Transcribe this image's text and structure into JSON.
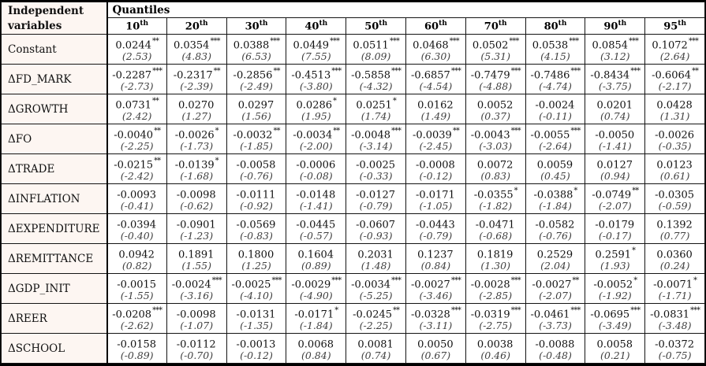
{
  "header": {
    "col1_line1": "Independent",
    "col1_line2": "variables",
    "group": "Quantiles",
    "quantiles": [
      {
        "n": "10",
        "sup": "th"
      },
      {
        "n": "20",
        "sup": "th"
      },
      {
        "n": "30",
        "sup": "th"
      },
      {
        "n": "40",
        "sup": "th"
      },
      {
        "n": "50",
        "sup": "th"
      },
      {
        "n": "60",
        "sup": "th"
      },
      {
        "n": "70",
        "sup": "th"
      },
      {
        "n": "80",
        "sup": "th"
      },
      {
        "n": "90",
        "sup": "th"
      },
      {
        "n": "95",
        "sup": "th"
      }
    ]
  },
  "table": {
    "rows": [
      {
        "label": "Constant",
        "cells": [
          {
            "c": "0.0244",
            "s": "**",
            "t": "(2.53)"
          },
          {
            "c": "0.0354",
            "s": "***",
            "t": "(4.83)"
          },
          {
            "c": "0.0388",
            "s": "***",
            "t": "(6.53)"
          },
          {
            "c": "0.0449",
            "s": "***",
            "t": "(7.55)"
          },
          {
            "c": "0.0511",
            "s": "***",
            "t": "(8.09)"
          },
          {
            "c": "0.0468",
            "s": "***",
            "t": "(6.30)"
          },
          {
            "c": "0.0502",
            "s": "***",
            "t": "(5.31)"
          },
          {
            "c": "0.0538",
            "s": "***",
            "t": "(4.15)"
          },
          {
            "c": "0.0854",
            "s": "***",
            "t": "(3.12)"
          },
          {
            "c": "0.1072",
            "s": "***",
            "t": "(2.64)"
          }
        ]
      },
      {
        "label": "ΔFD_MARK",
        "cells": [
          {
            "c": "-0.2287",
            "s": "***",
            "t": "(-2.73)"
          },
          {
            "c": "-0.2317",
            "s": "**",
            "t": "(-2.39)"
          },
          {
            "c": "-0.2856",
            "s": "**",
            "t": "(-2.49)"
          },
          {
            "c": "-0.4513",
            "s": "***",
            "t": "(-3.80)"
          },
          {
            "c": "-0.5858",
            "s": "***",
            "t": "(-4.32)"
          },
          {
            "c": "-0.6857",
            "s": "***",
            "t": "(-4.54)"
          },
          {
            "c": "-0.7479",
            "s": "***",
            "t": "(-4.88)"
          },
          {
            "c": "-0.7486",
            "s": "***",
            "t": "(-4.74)"
          },
          {
            "c": "-0.8434",
            "s": "***",
            "t": "(-3.75)"
          },
          {
            "c": "-0.6064",
            "s": "**",
            "t": "(-2.17)"
          }
        ]
      },
      {
        "label": "ΔGROWTH",
        "cells": [
          {
            "c": "0.0731",
            "s": "**",
            "t": "(2.42)"
          },
          {
            "c": "0.0270",
            "s": "",
            "t": "(1.27)"
          },
          {
            "c": "0.0297",
            "s": "",
            "t": "(1.56)"
          },
          {
            "c": "0.0286",
            "s": "*",
            "t": "(1.95)"
          },
          {
            "c": "0.0251",
            "s": "*",
            "t": "(1.74)"
          },
          {
            "c": "0.0162",
            "s": "",
            "t": "(1.49)"
          },
          {
            "c": "0.0052",
            "s": "",
            "t": "(0.37)"
          },
          {
            "c": "-0.0024",
            "s": "",
            "t": "(-0.11)"
          },
          {
            "c": "0.0201",
            "s": "",
            "t": "(0.74)"
          },
          {
            "c": "0.0428",
            "s": "",
            "t": "(1.31)"
          }
        ]
      },
      {
        "label": "ΔFO",
        "cells": [
          {
            "c": "-0.0040",
            "s": "**",
            "t": "(-2.25)"
          },
          {
            "c": "-0.0026",
            "s": "*",
            "t": "(-1.73)"
          },
          {
            "c": "-0.0032",
            "s": "**",
            "t": "(-1.85)"
          },
          {
            "c": "-0.0034",
            "s": "**",
            "t": "(-2.00)"
          },
          {
            "c": "-0.0048",
            "s": "***",
            "t": "(-3.14)"
          },
          {
            "c": "-0.0039",
            "s": "**",
            "t": "(-2.45)"
          },
          {
            "c": "-0.0043",
            "s": "***",
            "t": "(-3.03)"
          },
          {
            "c": "-0.0055",
            "s": "***",
            "t": "(-2.64)"
          },
          {
            "c": "-0.0050",
            "s": "",
            "t": "(-1.41)"
          },
          {
            "c": "-0.0026",
            "s": "",
            "t": "(-0.35)"
          }
        ]
      },
      {
        "label": "ΔTRADE",
        "cells": [
          {
            "c": "-0.0215",
            "s": "**",
            "t": "(-2.42)"
          },
          {
            "c": "-0.0139",
            "s": "*",
            "t": "(-1.68)"
          },
          {
            "c": "-0.0058",
            "s": "",
            "t": "(-0.76)"
          },
          {
            "c": "-0.0006",
            "s": "",
            "t": "(-0.08)"
          },
          {
            "c": "-0.0025",
            "s": "",
            "t": "(-0.33)"
          },
          {
            "c": "-0.0008",
            "s": "",
            "t": "(-0.12)"
          },
          {
            "c": "0.0072",
            "s": "",
            "t": "(0.83)"
          },
          {
            "c": "0.0059",
            "s": "",
            "t": "(0.45)"
          },
          {
            "c": "0.0127",
            "s": "",
            "t": "(0.94)"
          },
          {
            "c": "0.0123",
            "s": "",
            "t": "(0.61)"
          }
        ]
      },
      {
        "label": "ΔINFLATION",
        "cells": [
          {
            "c": "-0.0093",
            "s": "",
            "t": "(-0.41)"
          },
          {
            "c": "-0.0098",
            "s": "",
            "t": "(-0.62)"
          },
          {
            "c": "-0.0111",
            "s": "",
            "t": "(-0.92)"
          },
          {
            "c": "-0.0148",
            "s": "",
            "t": "(-1.41)"
          },
          {
            "c": "-0.0127",
            "s": "",
            "t": "(-0.79)"
          },
          {
            "c": "-0.0171",
            "s": "",
            "t": "(-1.05)"
          },
          {
            "c": "-0.0355",
            "s": "*",
            "t": "(-1.82)"
          },
          {
            "c": "-0.0388",
            "s": "*",
            "t": "(-1.84)"
          },
          {
            "c": "-0.0749",
            "s": "**",
            "t": "(-2.07)"
          },
          {
            "c": "-0.0305",
            "s": "",
            "t": "(-0.59)"
          }
        ]
      },
      {
        "label": "ΔEXPENDITURE",
        "cells": [
          {
            "c": "-0.0394",
            "s": "",
            "t": "(-0.40)"
          },
          {
            "c": "-0.0901",
            "s": "",
            "t": "(-1.23)"
          },
          {
            "c": "-0.0569",
            "s": "",
            "t": "(-0.83)"
          },
          {
            "c": "-0.0445",
            "s": "",
            "t": "(-0.57)"
          },
          {
            "c": "-0.0607",
            "s": "",
            "t": "(-0.93)"
          },
          {
            "c": "-0.0443",
            "s": "",
            "t": "(-0.79)"
          },
          {
            "c": "-0.0471",
            "s": "",
            "t": "(-0.68)"
          },
          {
            "c": "-0.0582",
            "s": "",
            "t": "(-0.76)"
          },
          {
            "c": "-0.0179",
            "s": "",
            "t": "(-0.17)"
          },
          {
            "c": "0.1392",
            "s": "",
            "t": "(0.77)"
          }
        ]
      },
      {
        "label": "ΔREMITTANCE",
        "cells": [
          {
            "c": "0.0942",
            "s": "",
            "t": "(0.82)"
          },
          {
            "c": "0.1891",
            "s": "",
            "t": "(1.55)"
          },
          {
            "c": "0.1800",
            "s": "",
            "t": "(1.25)"
          },
          {
            "c": "0.1604",
            "s": "",
            "t": "(0.89)"
          },
          {
            "c": "0.2031",
            "s": "",
            "t": "(1.48)"
          },
          {
            "c": "0.1237",
            "s": "",
            "t": "(0.84)"
          },
          {
            "c": "0.1819",
            "s": "",
            "t": "(1.30)"
          },
          {
            "c": "0.2529",
            "s": "",
            "t": "(2.04)"
          },
          {
            "c": "0.2591",
            "s": "*",
            "t": "(1.93)"
          },
          {
            "c": "0.0360",
            "s": "",
            "t": "(0.24)"
          }
        ]
      },
      {
        "label": "ΔGDP_INIT",
        "cells": [
          {
            "c": "-0.0015",
            "s": "",
            "t": "(-1.55)"
          },
          {
            "c": "-0.0024",
            "s": "***",
            "t": "(-3.16)"
          },
          {
            "c": "-0.0025",
            "s": "***",
            "t": "(-4.10)"
          },
          {
            "c": "-0.0029",
            "s": "***",
            "t": "(-4.90)"
          },
          {
            "c": "-0.0034",
            "s": "***",
            "t": "(-5.25)"
          },
          {
            "c": "-0.0027",
            "s": "***",
            "t": "(-3.46)"
          },
          {
            "c": "-0.0028",
            "s": "***",
            "t": "(-2.85)"
          },
          {
            "c": "-0.0027",
            "s": "**",
            "t": "(-2.07)"
          },
          {
            "c": "-0.0052",
            "s": "*",
            "t": "(-1.92)"
          },
          {
            "c": "-0.0071",
            "s": "*",
            "t": "(-1.71)"
          }
        ]
      },
      {
        "label": "ΔREER",
        "cells": [
          {
            "c": "-0.0208",
            "s": "***",
            "t": "(-2.62)"
          },
          {
            "c": "-0.0098",
            "s": "",
            "t": "(-1.07)"
          },
          {
            "c": "-0.0131",
            "s": "",
            "t": "(-1.35)"
          },
          {
            "c": "-0.0171",
            "s": "*",
            "t": "(-1.84)"
          },
          {
            "c": "-0.0245",
            "s": "**",
            "t": "(-2.25)"
          },
          {
            "c": "-0.0328",
            "s": "***",
            "t": "(-3.11)"
          },
          {
            "c": "-0.0319",
            "s": "***",
            "t": "(-2.75)"
          },
          {
            "c": "-0.0461",
            "s": "***",
            "t": "(-3.73)"
          },
          {
            "c": "-0.0695",
            "s": "***",
            "t": "(-3.49)"
          },
          {
            "c": "-0.0831",
            "s": "***",
            "t": "(-3.48)"
          }
        ]
      },
      {
        "label": "ΔSCHOOL",
        "cells": [
          {
            "c": "-0.0158",
            "s": "",
            "t": "(-0.89)"
          },
          {
            "c": "-0.0112",
            "s": "",
            "t": "(-0.70)"
          },
          {
            "c": "-0.0013",
            "s": "",
            "t": "(-0.12)"
          },
          {
            "c": "0.0068",
            "s": "",
            "t": "(0.84)"
          },
          {
            "c": "0.0081",
            "s": "",
            "t": "(0.74)"
          },
          {
            "c": "0.0050",
            "s": "",
            "t": "(0.67)"
          },
          {
            "c": "0.0038",
            "s": "",
            "t": "(0.46)"
          },
          {
            "c": "-0.0088",
            "s": "",
            "t": "(-0.48)"
          },
          {
            "c": "0.0058",
            "s": "",
            "t": "(0.21)"
          },
          {
            "c": "-0.0372",
            "s": "",
            "t": "(-0.75)"
          }
        ]
      }
    ]
  }
}
